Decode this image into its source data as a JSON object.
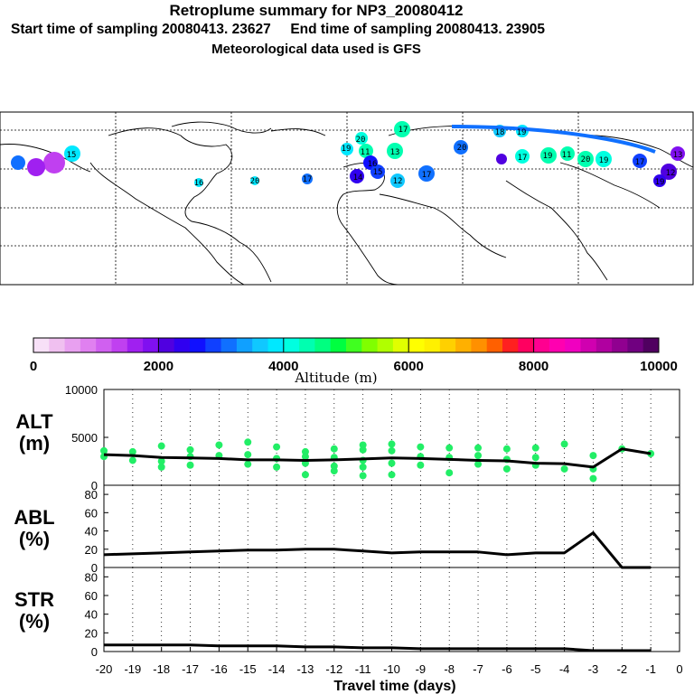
{
  "header": {
    "line1": "Retroplume summary for NP3_20080412",
    "line2_start": "Start time of sampling 20080413. 23627",
    "line2_end": "End time of sampling 20080413. 23905",
    "line3": "Meteorological data used is GFS"
  },
  "map_labels": [
    "19",
    "20",
    "11",
    "13",
    "17",
    "16",
    "15",
    "14",
    "12",
    "17",
    "20",
    "18",
    "19",
    "17",
    "19",
    "11",
    "20",
    "19",
    "17",
    "12",
    "13",
    "19",
    "15",
    "16",
    "20",
    "17"
  ],
  "colorbar": {
    "label": "Altitude (m)",
    "ticks": [
      "0",
      "2000",
      "4000",
      "6000",
      "8000",
      "10000"
    ],
    "colors": [
      "#f7e0f7",
      "#f0c0f0",
      "#e8a0f0",
      "#e080f0",
      "#d060f0",
      "#c040f0",
      "#a020f0",
      "#8010f0",
      "#5000e0",
      "#3000f0",
      "#1010ff",
      "#1040ff",
      "#1070ff",
      "#10a0ff",
      "#10c8ff",
      "#00e8ff",
      "#00ffe0",
      "#00ffb0",
      "#00ff80",
      "#00ff40",
      "#40ff20",
      "#80ff00",
      "#b0ff00",
      "#e0ff00",
      "#ffff00",
      "#fff000",
      "#ffd000",
      "#ffb000",
      "#ff9000",
      "#ff6000",
      "#ff2020",
      "#ff0060",
      "#ff0090",
      "#ff00b0",
      "#f000c0",
      "#d000b0",
      "#b000a0",
      "#900090",
      "#700080",
      "#500060"
    ]
  },
  "chart_data": [
    {
      "type": "line",
      "panel": "ALT",
      "ylabel_top": "ALT",
      "ylabel_bottom": "(m)",
      "ylim": [
        0,
        10000
      ],
      "yticks": [
        "0",
        "5000",
        "10000"
      ],
      "x": [
        -20,
        -19,
        -18,
        -17,
        -16,
        -15,
        -14,
        -13,
        -12,
        -11,
        -10,
        -9,
        -8,
        -7,
        -6,
        -5,
        -4,
        -3,
        -2,
        -1
      ],
      "series": [
        {
          "name": "median altitude",
          "values": [
            3200,
            3100,
            2900,
            2850,
            2800,
            2650,
            2650,
            2600,
            2650,
            2750,
            2850,
            2800,
            2700,
            2600,
            2550,
            2300,
            2250,
            1900,
            3800,
            3300
          ]
        }
      ],
      "scatter_points": [
        [
          -20,
          3600
        ],
        [
          -20,
          3000
        ],
        [
          -19,
          3500
        ],
        [
          -19,
          2600
        ],
        [
          -18,
          4100
        ],
        [
          -18,
          2500
        ],
        [
          -18,
          1900
        ],
        [
          -17,
          3700
        ],
        [
          -17,
          3000
        ],
        [
          -17,
          2100
        ],
        [
          -16,
          4200
        ],
        [
          -16,
          3100
        ],
        [
          -15,
          4500
        ],
        [
          -15,
          3200
        ],
        [
          -15,
          2200
        ],
        [
          -14,
          4000
        ],
        [
          -14,
          2800
        ],
        [
          -14,
          1900
        ],
        [
          -13,
          3500
        ],
        [
          -13,
          3000
        ],
        [
          -13,
          2300
        ],
        [
          -13,
          1100
        ],
        [
          -12,
          3800
        ],
        [
          -12,
          2900
        ],
        [
          -12,
          2000
        ],
        [
          -12,
          1500
        ],
        [
          -11,
          4200
        ],
        [
          -11,
          3700
        ],
        [
          -11,
          2600
        ],
        [
          -11,
          1900
        ],
        [
          -11,
          1000
        ],
        [
          -10,
          4300
        ],
        [
          -10,
          3600
        ],
        [
          -10,
          2300
        ],
        [
          -10,
          1100
        ],
        [
          -9,
          4000
        ],
        [
          -9,
          3000
        ],
        [
          -9,
          2100
        ],
        [
          -8,
          3900
        ],
        [
          -8,
          2900
        ],
        [
          -8,
          1300
        ],
        [
          -7,
          3900
        ],
        [
          -7,
          3100
        ],
        [
          -7,
          2200
        ],
        [
          -6,
          3800
        ],
        [
          -6,
          2700
        ],
        [
          -6,
          1700
        ],
        [
          -5,
          3900
        ],
        [
          -5,
          2900
        ],
        [
          -5,
          2100
        ],
        [
          -4,
          4300
        ],
        [
          -4,
          1700
        ],
        [
          -3,
          3100
        ],
        [
          -3,
          1700
        ],
        [
          -3,
          700
        ],
        [
          -2,
          3800
        ],
        [
          -1,
          3300
        ]
      ],
      "grid": "dotted"
    },
    {
      "type": "line",
      "panel": "ABL",
      "ylabel_top": "ABL",
      "ylabel_bottom": "(%)",
      "ylim": [
        0,
        90
      ],
      "yticks": [
        "0",
        "20",
        "40",
        "60",
        "80"
      ],
      "x": [
        -20,
        -19,
        -18,
        -17,
        -16,
        -15,
        -14,
        -13,
        -12,
        -11,
        -10,
        -9,
        -8,
        -7,
        -6,
        -5,
        -4,
        -3,
        -2,
        -1
      ],
      "series": [
        {
          "name": "ABL fraction",
          "values": [
            14,
            15,
            16,
            17,
            18,
            19,
            19,
            20,
            20,
            18,
            16,
            17,
            17,
            17,
            14,
            16,
            16,
            38,
            0,
            0
          ]
        }
      ],
      "grid": "dotted"
    },
    {
      "type": "line",
      "panel": "STR",
      "ylabel_top": "STR",
      "ylabel_bottom": "(%)",
      "ylim": [
        0,
        90
      ],
      "yticks": [
        "0",
        "20",
        "40",
        "60",
        "80"
      ],
      "x": [
        -20,
        -19,
        -18,
        -17,
        -16,
        -15,
        -14,
        -13,
        -12,
        -11,
        -10,
        -9,
        -8,
        -7,
        -6,
        -5,
        -4,
        -3,
        -2,
        -1
      ],
      "series": [
        {
          "name": "stratosphere fraction",
          "values": [
            7,
            7,
            7,
            7,
            6,
            6,
            6,
            5,
            5,
            4,
            4,
            3,
            3,
            3,
            3,
            3,
            3,
            1,
            1,
            1
          ]
        }
      ],
      "grid": "dotted"
    }
  ],
  "xaxis": {
    "label": "Travel time (days)",
    "ticks": [
      "-20",
      "-19",
      "-18",
      "-17",
      "-16",
      "-15",
      "-14",
      "-13",
      "-12",
      "-11",
      "-10",
      "-9",
      "-8",
      "-7",
      "-6",
      "-5",
      "-4",
      "-3",
      "-2",
      "-1",
      "0"
    ]
  }
}
